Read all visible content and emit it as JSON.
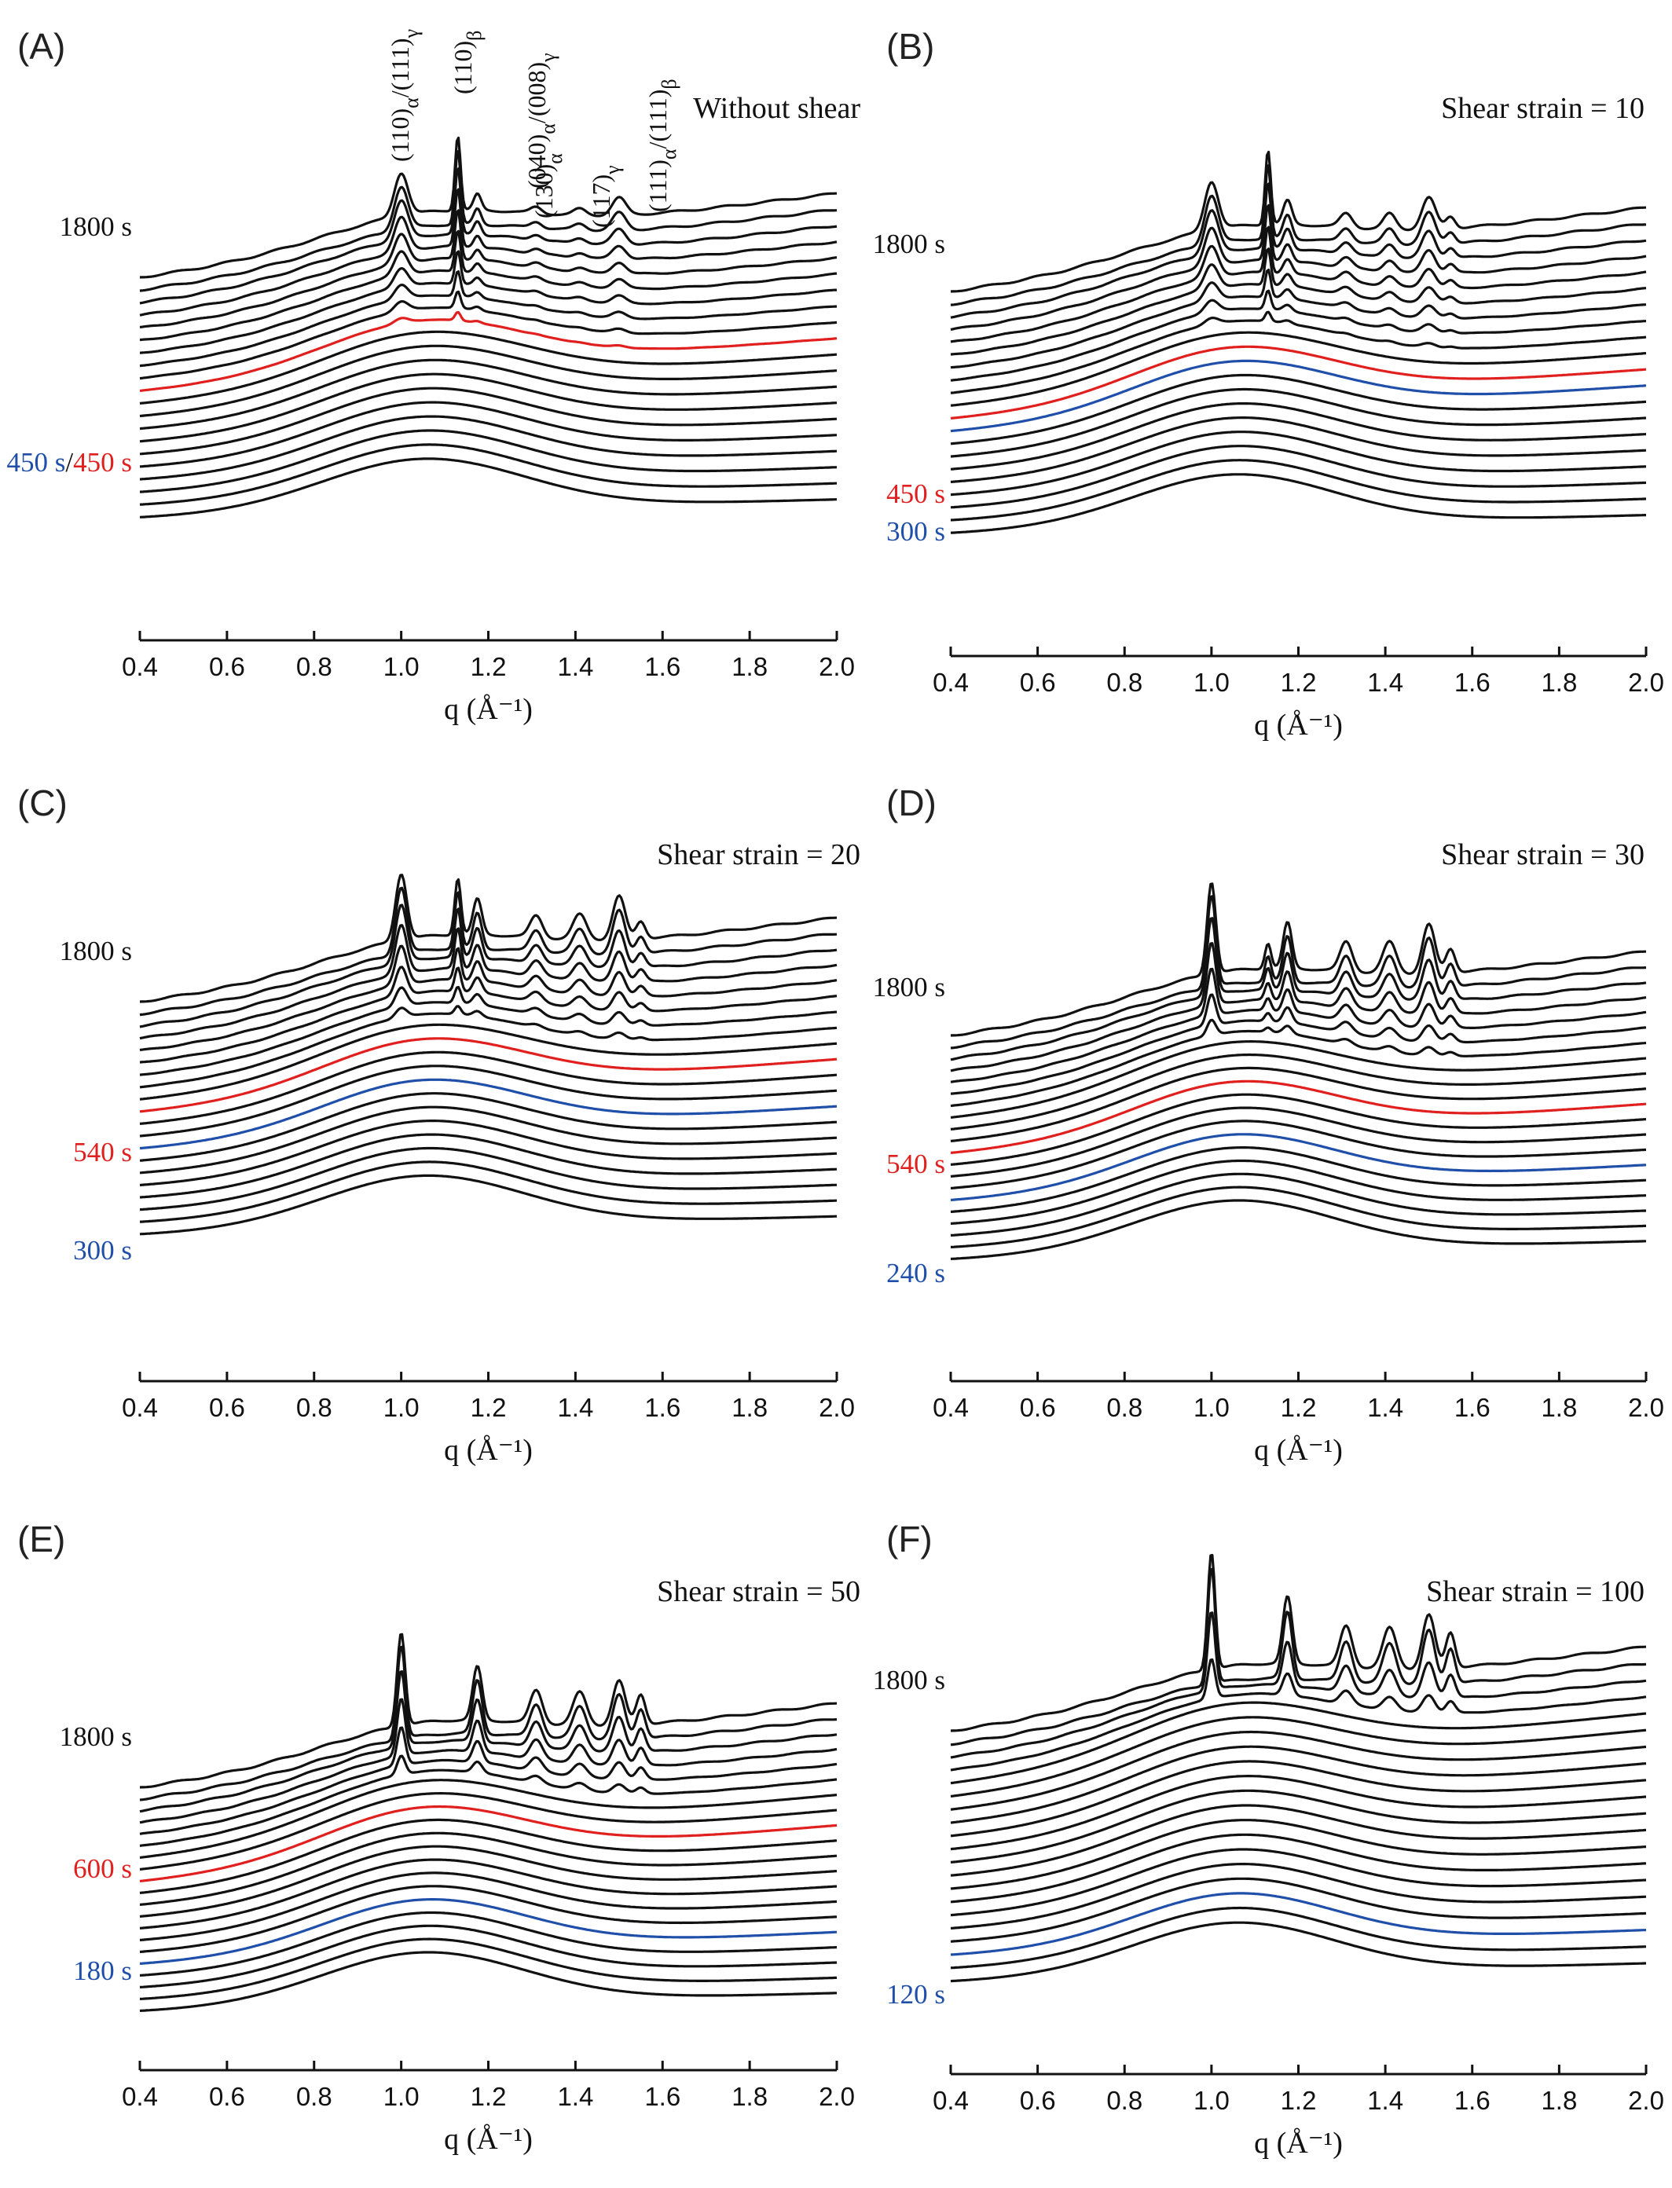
{
  "colors": {
    "black": "#111111",
    "red": "#e0201e",
    "blue": "#1f4fa8"
  },
  "chart_data": [
    {
      "panel": "(A)",
      "type": "line",
      "title": "Without shear",
      "xlabel": "q (Å⁻¹)",
      "xlim": [
        0.4,
        2.0
      ],
      "xticks": [
        "0.4",
        "0.6",
        "0.8",
        "1.0",
        "1.2",
        "1.4",
        "1.6",
        "1.8",
        "2.0"
      ],
      "stacked_curves": 20,
      "time_labels": [
        {
          "segments": [
            {
              "text": "1800 s",
              "color": "black"
            }
          ]
        },
        {
          "segments": [
            {
              "text": "450 s",
              "color": "blue"
            },
            {
              "text": "/",
              "color": "black"
            },
            {
              "text": "450 s",
              "color": "red"
            }
          ]
        }
      ],
      "peak_labels": [
        {
          "main": "(110)",
          "sub1": "α",
          "mid": "/(111)",
          "sub2": "γ"
        },
        {
          "main": "(110)",
          "sub1": "β",
          "mid": "",
          "sub2": ""
        },
        {
          "main": "(040)",
          "sub1": "α",
          "mid": "/(008)",
          "sub2": "γ"
        },
        {
          "main": "(130)",
          "sub1": "α",
          "mid": "",
          "sub2": ""
        },
        {
          "main": "(117)",
          "sub1": "γ",
          "mid": "",
          "sub2": ""
        },
        {
          "main": "(111)",
          "sub1": "α",
          "mid": "/(111)",
          "sub2": "β"
        }
      ]
    },
    {
      "panel": "(B)",
      "type": "line",
      "title": "Shear strain = 10",
      "xlabel": "q (Å⁻¹)",
      "xlim": [
        0.4,
        2.0
      ],
      "xticks": [
        "0.4",
        "0.6",
        "0.8",
        "1.0",
        "1.2",
        "1.4",
        "1.6",
        "1.8",
        "2.0"
      ],
      "stacked_curves": 20,
      "time_labels": [
        {
          "segments": [
            {
              "text": "1800 s",
              "color": "black"
            }
          ]
        },
        {
          "segments": [
            {
              "text": "450 s",
              "color": "red"
            }
          ]
        },
        {
          "segments": [
            {
              "text": "300 s",
              "color": "blue"
            }
          ]
        }
      ]
    },
    {
      "panel": "(C)",
      "type": "line",
      "title": "Shear strain = 20",
      "xlabel": "q (Å⁻¹)",
      "xlim": [
        0.4,
        2.0
      ],
      "xticks": [
        "0.4",
        "0.6",
        "0.8",
        "1.0",
        "1.2",
        "1.4",
        "1.6",
        "1.8",
        "2.0"
      ],
      "stacked_curves": 20,
      "time_labels": [
        {
          "segments": [
            {
              "text": "1800 s",
              "color": "black"
            }
          ]
        },
        {
          "segments": [
            {
              "text": "540 s",
              "color": "red"
            }
          ]
        },
        {
          "segments": [
            {
              "text": "300 s",
              "color": "blue"
            }
          ]
        }
      ]
    },
    {
      "panel": "(D)",
      "type": "line",
      "title": "Shear strain = 30",
      "xlabel": "q (Å⁻¹)",
      "xlim": [
        0.4,
        2.0
      ],
      "xticks": [
        "0.4",
        "0.6",
        "0.8",
        "1.0",
        "1.2",
        "1.4",
        "1.6",
        "1.8",
        "2.0"
      ],
      "stacked_curves": 20,
      "time_labels": [
        {
          "segments": [
            {
              "text": "1800 s",
              "color": "black"
            }
          ]
        },
        {
          "segments": [
            {
              "text": "540 s",
              "color": "red"
            }
          ]
        },
        {
          "segments": [
            {
              "text": "240 s",
              "color": "blue"
            }
          ]
        }
      ]
    },
    {
      "panel": "(E)",
      "type": "line",
      "title": "Shear strain = 50",
      "xlabel": "q (Å⁻¹)",
      "xlim": [
        0.4,
        2.0
      ],
      "xticks": [
        "0.4",
        "0.6",
        "0.8",
        "1.0",
        "1.2",
        "1.4",
        "1.6",
        "1.8",
        "2.0"
      ],
      "stacked_curves": 20,
      "time_labels": [
        {
          "segments": [
            {
              "text": "1800 s",
              "color": "black"
            }
          ]
        },
        {
          "segments": [
            {
              "text": "600 s",
              "color": "red"
            }
          ]
        },
        {
          "segments": [
            {
              "text": "180 s",
              "color": "blue"
            }
          ]
        }
      ]
    },
    {
      "panel": "(F)",
      "type": "line",
      "title": "Shear strain = 100",
      "xlabel": "q (Å⁻¹)",
      "xlim": [
        0.4,
        2.0
      ],
      "xticks": [
        "0.4",
        "0.6",
        "0.8",
        "1.0",
        "1.2",
        "1.4",
        "1.6",
        "1.8",
        "2.0"
      ],
      "stacked_curves": 20,
      "time_labels": [
        {
          "segments": [
            {
              "text": "1800 s",
              "color": "black"
            }
          ]
        },
        {
          "segments": [
            {
              "text": "120 s",
              "color": "blue"
            }
          ]
        }
      ]
    }
  ]
}
